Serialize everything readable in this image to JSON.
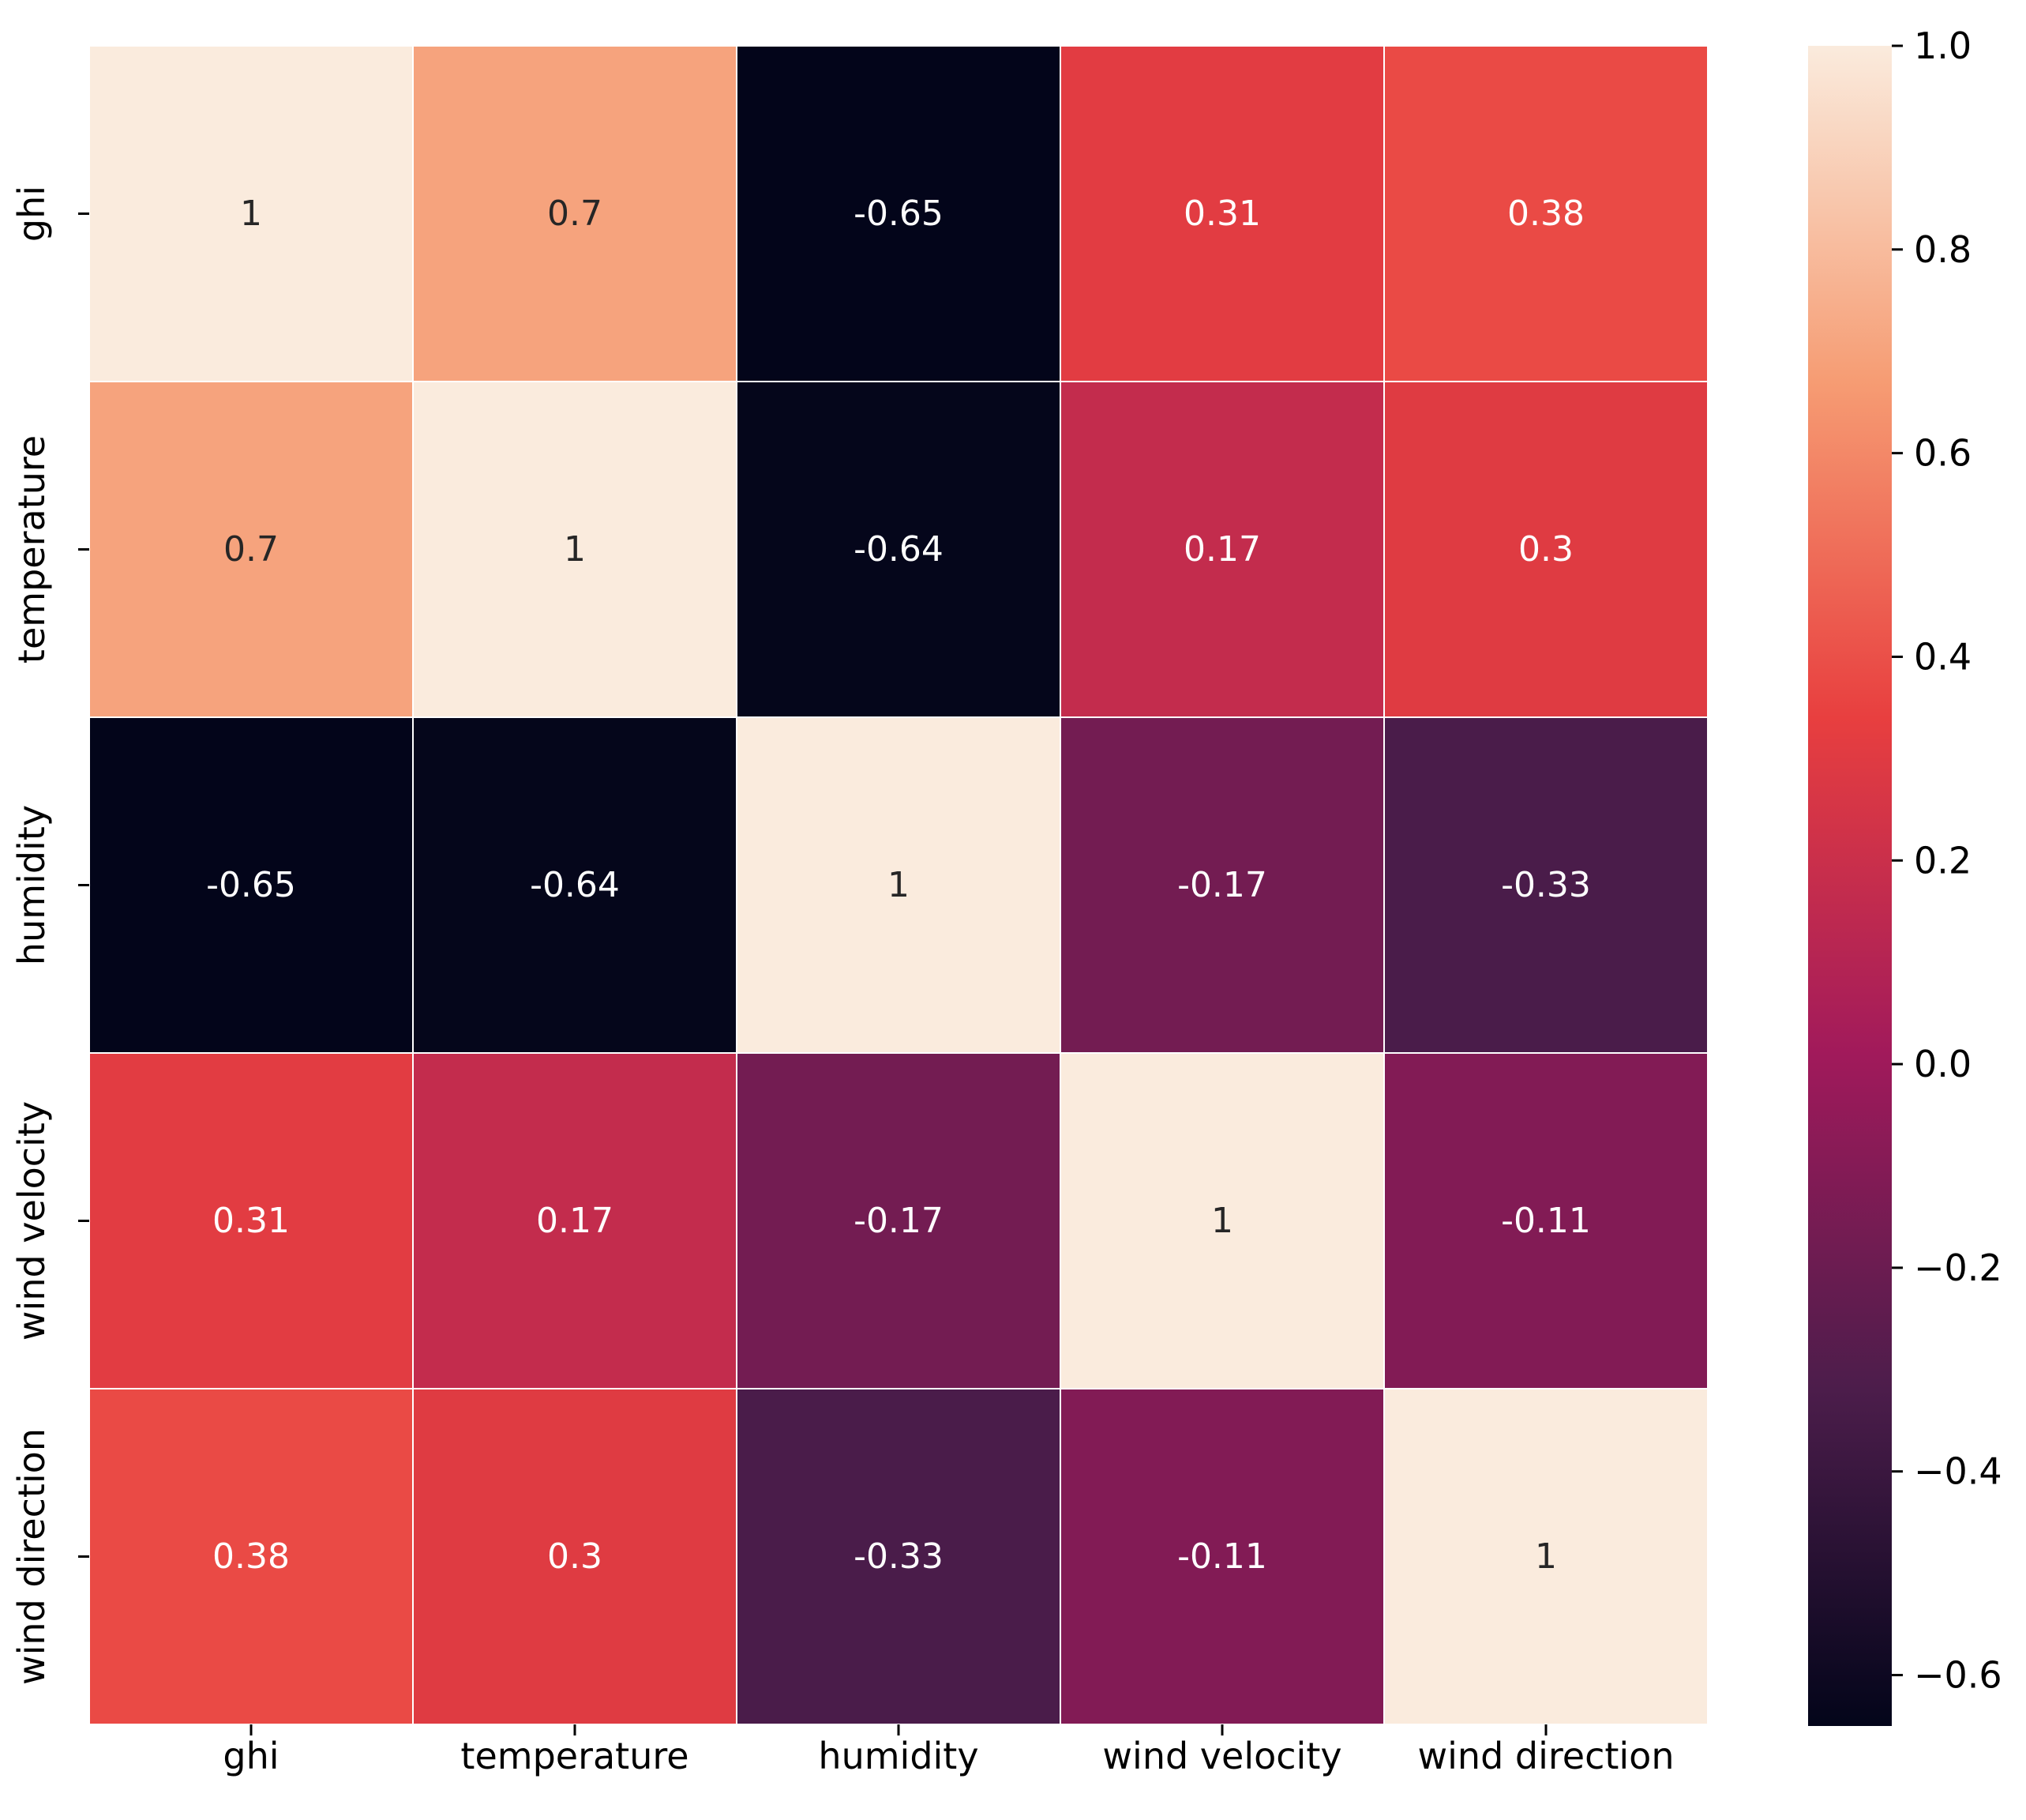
{
  "chart_data": {
    "type": "heatmap",
    "title": "",
    "xlabel": "",
    "ylabel": "",
    "x_categories": [
      "ghi",
      "temperature",
      "humidity",
      "wind velocity",
      "wind direction"
    ],
    "y_categories": [
      "ghi",
      "temperature",
      "humidity",
      "wind velocity",
      "wind direction"
    ],
    "values": [
      [
        1,
        0.7,
        -0.65,
        0.31,
        0.38
      ],
      [
        0.7,
        1,
        -0.64,
        0.17,
        0.3
      ],
      [
        -0.65,
        -0.64,
        1,
        -0.17,
        -0.33
      ],
      [
        0.31,
        0.17,
        -0.17,
        1,
        -0.11
      ],
      [
        0.38,
        0.3,
        -0.33,
        -0.11,
        1
      ]
    ],
    "annotations": [
      [
        "1",
        "0.7",
        "-0.65",
        "0.31",
        "0.38"
      ],
      [
        "0.7",
        "1",
        "-0.64",
        "0.17",
        "0.3"
      ],
      [
        "-0.65",
        "-0.64",
        "1",
        "-0.17",
        "-0.33"
      ],
      [
        "0.31",
        "0.17",
        "-0.17",
        "1",
        "-0.11"
      ],
      [
        "0.38",
        "0.3",
        "-0.33",
        "-0.11",
        "1"
      ]
    ],
    "colorbar": {
      "range": [
        -0.65,
        1.0
      ],
      "ticks": [
        1.0,
        0.8,
        0.6,
        0.4,
        0.2,
        0.0,
        -0.2,
        -0.4,
        -0.6
      ],
      "tick_labels": [
        "1.0",
        "0.8",
        "0.6",
        "0.4",
        "0.2",
        "0.0",
        "−0.2",
        "−0.4",
        "−0.6"
      ],
      "colormap": "rocket",
      "colormap_stops": [
        "#03051a",
        "#4c1d4b",
        "#a11a5b",
        "#e83f3f",
        "#f69c73",
        "#faebdd"
      ]
    },
    "grid": false
  }
}
